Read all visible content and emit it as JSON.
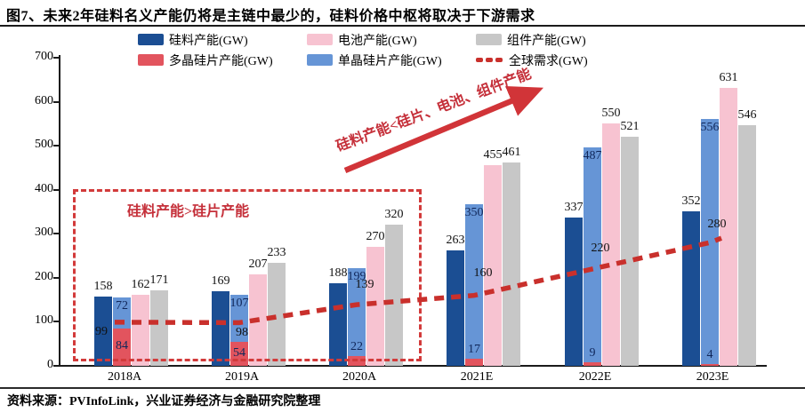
{
  "title": "图7、未来2年硅料名义产能仍将是主链中最少的，硅料价格中枢将取决于下游需求",
  "source": "资料来源：PVInfoLink，兴业证券经济与金融研究院整理",
  "legend": {
    "items": [
      {
        "label": "硅料产能(GW)",
        "color": "#1b4e93",
        "type": "swatch"
      },
      {
        "label": "多晶硅片产能(GW)",
        "color": "#e2545e",
        "type": "swatch"
      },
      {
        "label": "电池产能(GW)",
        "color": "#f7c3d1",
        "type": "swatch"
      },
      {
        "label": "单晶硅片产能(GW)",
        "color": "#6695d6",
        "type": "swatch"
      },
      {
        "label": "组件产能(GW)",
        "color": "#c7c7c7",
        "type": "swatch"
      },
      {
        "label": "全球需求(GW)",
        "color": "#c9302c",
        "type": "dashes"
      }
    ]
  },
  "annotations": {
    "box_label": "硅料产能>硅片产能",
    "arrow_label": "硅料产能<硅片、电池、组件产能"
  },
  "chart_data": {
    "type": "bar",
    "unit": "GW",
    "categories": [
      "2018A",
      "2019A",
      "2020A",
      "2021E",
      "2022E",
      "2023E"
    ],
    "ylim": [
      0,
      700
    ],
    "yticks": [
      0,
      100,
      200,
      300,
      400,
      500,
      600,
      700
    ],
    "grid": false,
    "legend_position": "top",
    "series": [
      {
        "name": "硅料产能(GW)",
        "color": "#1b4e93",
        "values": [
          158,
          169,
          188,
          263,
          337,
          352
        ]
      },
      {
        "name": "多晶硅片产能(GW)",
        "color": "#e2545e",
        "stack": "wafer",
        "values": [
          84,
          54,
          22,
          17,
          9,
          4
        ]
      },
      {
        "name": "单晶硅片产能(GW)",
        "color": "#6695d6",
        "stack": "wafer",
        "values": [
          72,
          107,
          199,
          350,
          487,
          556
        ]
      },
      {
        "name": "电池产能(GW)",
        "color": "#f7c3d1",
        "values": [
          162,
          207,
          270,
          455,
          550,
          631
        ]
      },
      {
        "name": "组件产能(GW)",
        "color": "#c7c7c7",
        "values": [
          171,
          233,
          320,
          461,
          521,
          546
        ]
      }
    ],
    "line": {
      "name": "全球需求(GW)",
      "color": "#c9302c",
      "style": "dashed",
      "values": [
        99,
        98,
        139,
        160,
        220,
        280
      ]
    }
  }
}
